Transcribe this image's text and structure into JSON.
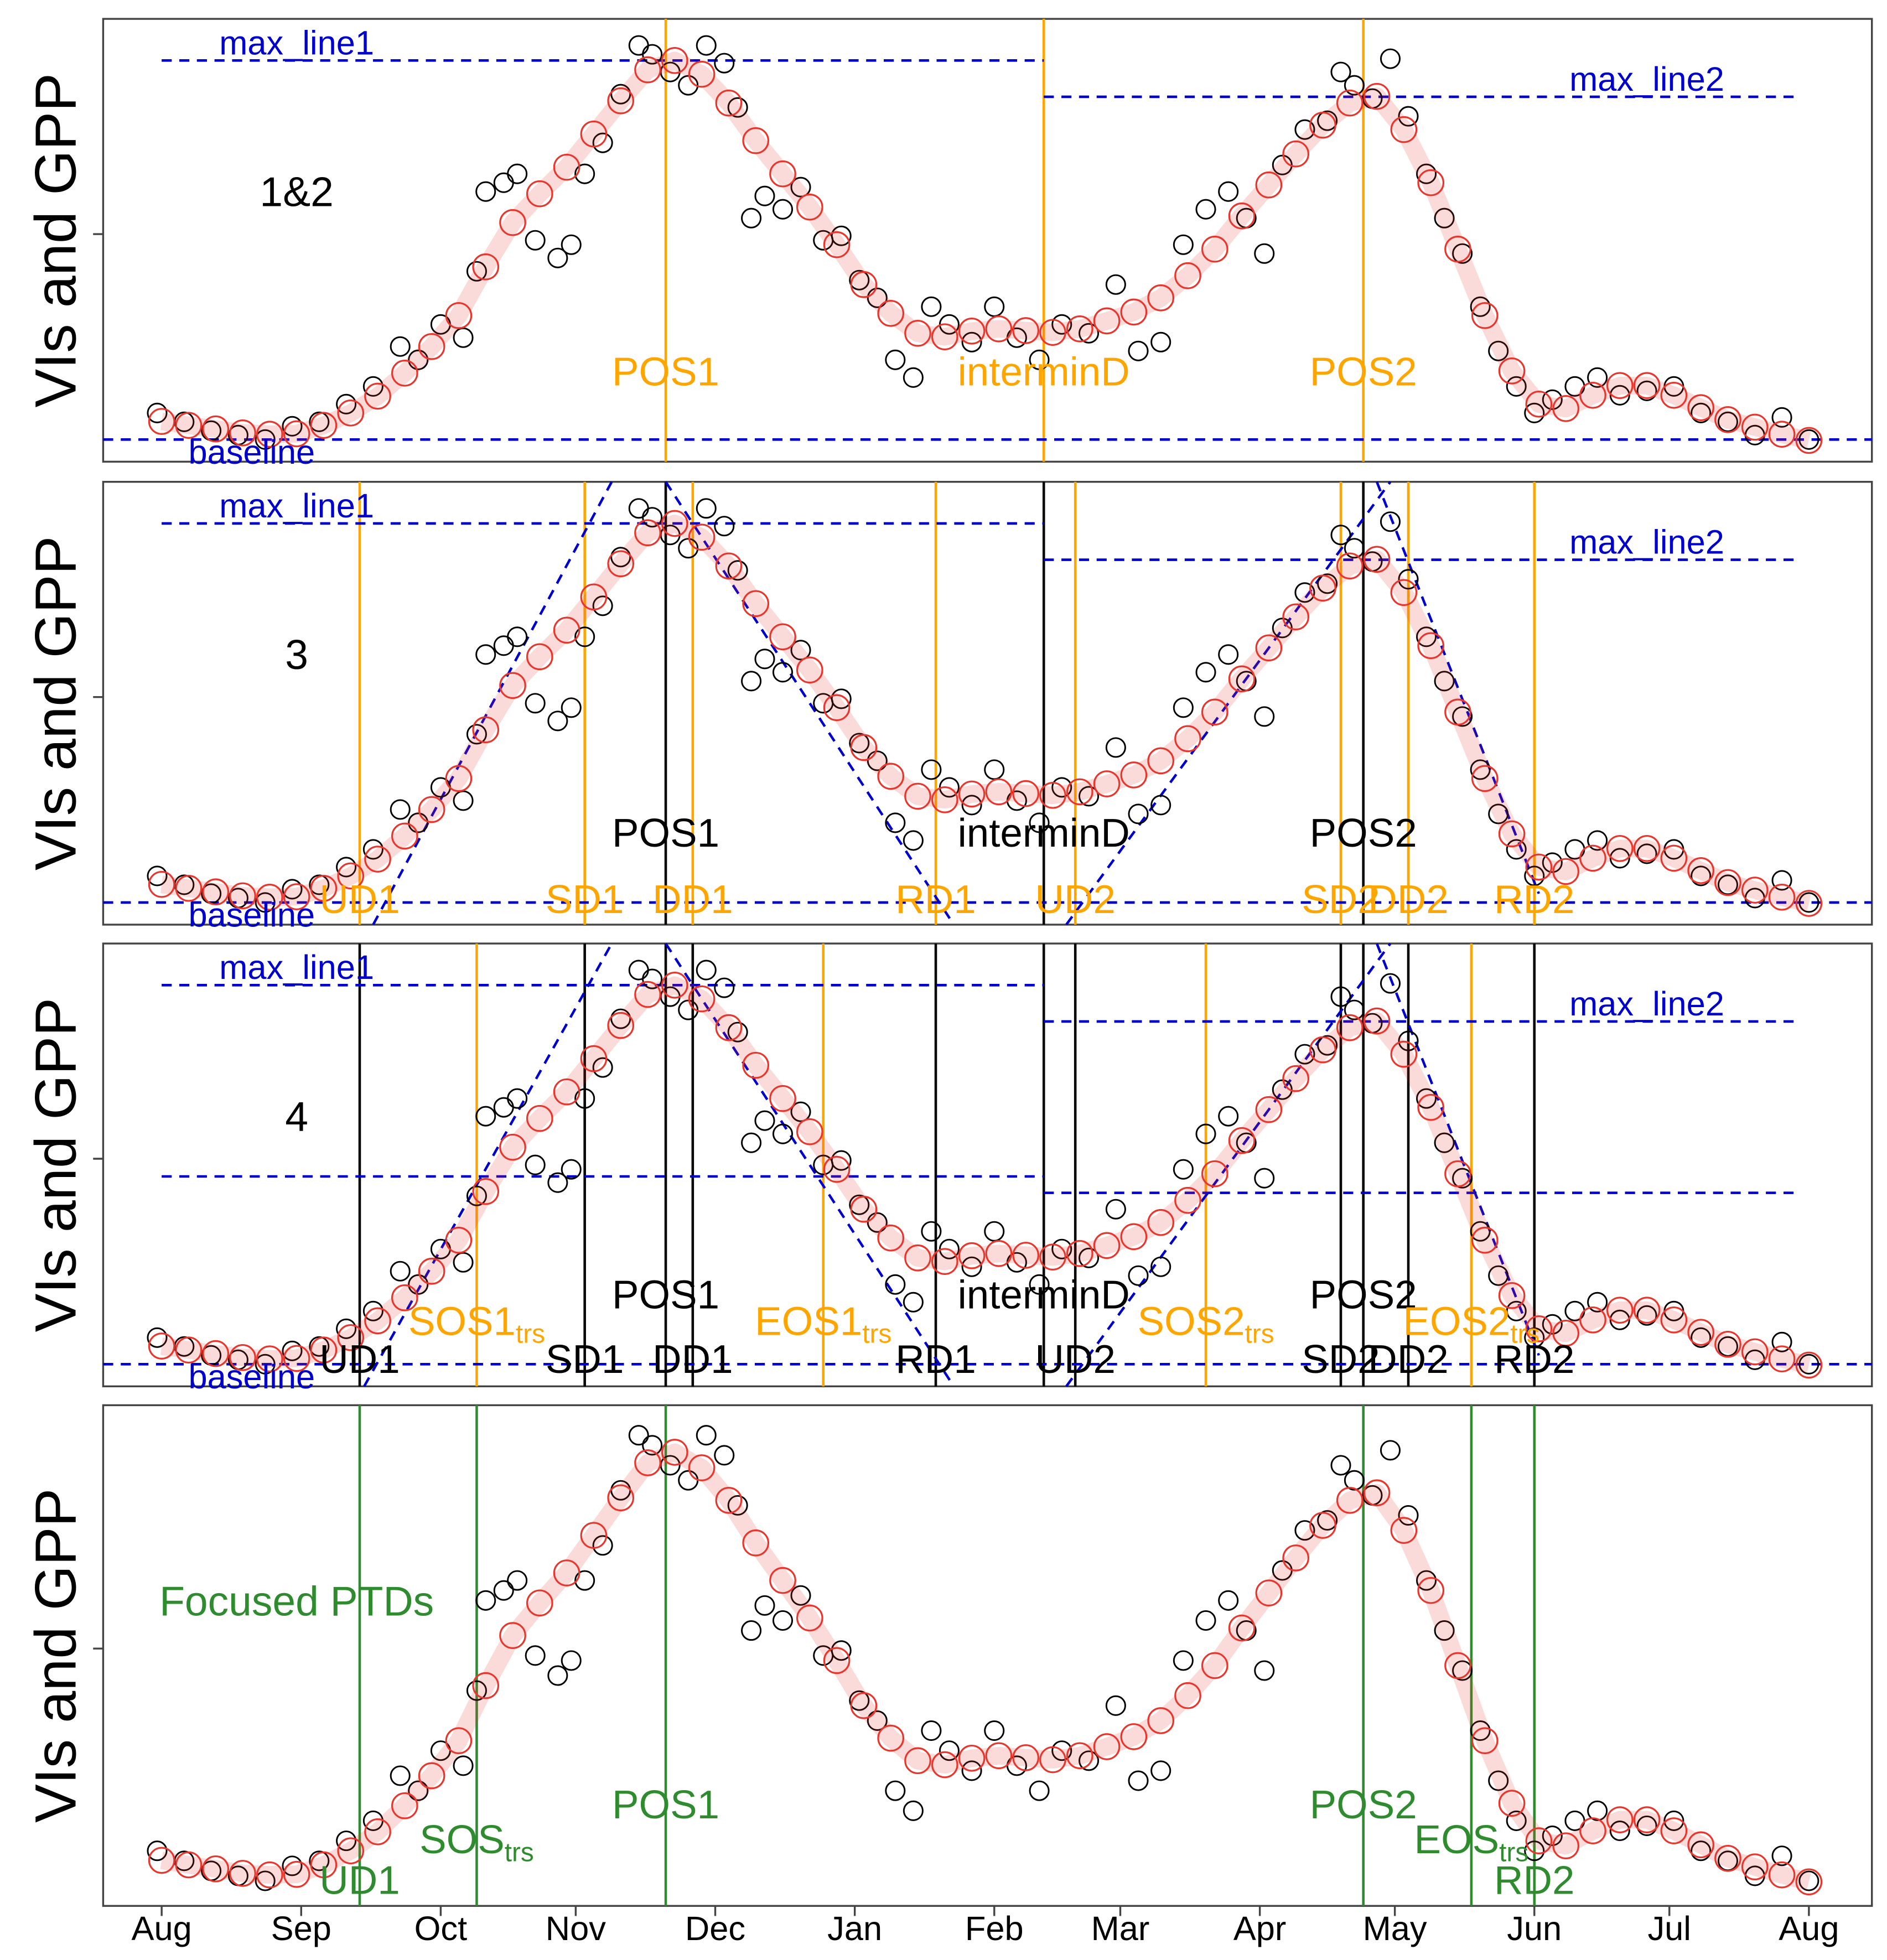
{
  "chart_data": {
    "type": "scatter",
    "ylabel": "VIs and GPP",
    "xlim": [
      -13,
      380
    ],
    "ylim": [
      0.05,
      1.05
    ],
    "yticks": [
      0.564
    ],
    "xticks": [
      {
        "value": 0,
        "label": "Aug"
      },
      {
        "value": 31,
        "label": "Sep"
      },
      {
        "value": 62,
        "label": "Oct"
      },
      {
        "value": 92,
        "label": "Nov"
      },
      {
        "value": 123,
        "label": "Dec"
      },
      {
        "value": 154,
        "label": "Jan"
      },
      {
        "value": 185,
        "label": "Feb"
      },
      {
        "value": 213,
        "label": "Mar"
      },
      {
        "value": 244,
        "label": "Apr"
      },
      {
        "value": 274,
        "label": "May"
      },
      {
        "value": 305,
        "label": "Jun"
      },
      {
        "value": 335,
        "label": "Jul"
      },
      {
        "value": 366,
        "label": "Aug"
      }
    ],
    "series": [
      {
        "color": "#000000",
        "x": [
          -1,
          5,
          11,
          17,
          23,
          29,
          35,
          41,
          47,
          53,
          57,
          62,
          67,
          70,
          72,
          76,
          79,
          83,
          88,
          91,
          94,
          98,
          102,
          106,
          109,
          113,
          117,
          121,
          125,
          128,
          131,
          134,
          138,
          142,
          147,
          151,
          155,
          159,
          163,
          167,
          171,
          175,
          180,
          185,
          190,
          195,
          200,
          206,
          212,
          217,
          222,
          227,
          232,
          237,
          241,
          245,
          249,
          254,
          259,
          262,
          265,
          269,
          273,
          277,
          281,
          285,
          289,
          293,
          297,
          301,
          305,
          309,
          314,
          319,
          324,
          330,
          336,
          342,
          348,
          354,
          360,
          366
        ],
        "values": [
          0.16,
          0.14,
          0.12,
          0.11,
          0.1,
          0.13,
          0.14,
          0.18,
          0.22,
          0.31,
          0.28,
          0.36,
          0.33,
          0.48,
          0.66,
          0.68,
          0.7,
          0.55,
          0.51,
          0.54,
          0.7,
          0.77,
          0.88,
          0.99,
          0.97,
          0.93,
          0.9,
          0.99,
          0.95,
          0.85,
          0.6,
          0.65,
          0.62,
          0.67,
          0.55,
          0.56,
          0.46,
          0.42,
          0.28,
          0.24,
          0.4,
          0.36,
          0.32,
          0.4,
          0.33,
          0.28,
          0.36,
          0.34,
          0.45,
          0.3,
          0.32,
          0.54,
          0.62,
          0.66,
          0.6,
          0.52,
          0.72,
          0.8,
          0.82,
          0.93,
          0.9,
          0.87,
          0.96,
          0.83,
          0.7,
          0.6,
          0.52,
          0.4,
          0.3,
          0.22,
          0.16,
          0.19,
          0.22,
          0.24,
          0.2,
          0.21,
          0.22,
          0.16,
          0.14,
          0.11,
          0.15,
          0.1
        ]
      },
      {
        "color": "#e8362c",
        "x": [
          0,
          6,
          12,
          18,
          24,
          30,
          36,
          42,
          48,
          54,
          60,
          66,
          72,
          78,
          84,
          90,
          96,
          102,
          108,
          114,
          120,
          126,
          132,
          138,
          144,
          150,
          156,
          162,
          168,
          174,
          180,
          186,
          192,
          198,
          204,
          210,
          216,
          222,
          228,
          234,
          240,
          246,
          252,
          258,
          264,
          270,
          276,
          282,
          288,
          294,
          300,
          306,
          312,
          318,
          324,
          330,
          336,
          342,
          348,
          354,
          360,
          366
        ],
        "values": [
          0.141,
          0.132,
          0.124,
          0.115,
          0.112,
          0.113,
          0.132,
          0.16,
          0.198,
          0.25,
          0.31,
          0.38,
          0.49,
          0.59,
          0.655,
          0.715,
          0.79,
          0.865,
          0.935,
          0.956,
          0.925,
          0.86,
          0.775,
          0.7,
          0.625,
          0.54,
          0.45,
          0.385,
          0.34,
          0.332,
          0.345,
          0.35,
          0.346,
          0.342,
          0.35,
          0.368,
          0.388,
          0.42,
          0.47,
          0.53,
          0.605,
          0.675,
          0.745,
          0.81,
          0.86,
          0.875,
          0.8,
          0.68,
          0.53,
          0.38,
          0.255,
          0.18,
          0.17,
          0.2,
          0.222,
          0.222,
          0.2,
          0.172,
          0.145,
          0.128,
          0.112,
          0.098
        ]
      }
    ],
    "line_color": "#0000cd",
    "panels": [
      {
        "label": "1&2",
        "label_color": "#000000",
        "hlines": [
          {
            "label": "max_line1",
            "value": 0.956,
            "x": [
              0,
              196
            ]
          },
          {
            "label": "max_line2",
            "value": 0.874,
            "x": [
              196,
              364
            ]
          },
          {
            "label": "baseline",
            "value": 0.1
          }
        ],
        "vlines": [
          {
            "color": "#ffa500",
            "lines": [
              {
                "label": "POS1",
                "x": 112
              },
              {
                "label": "interminD",
                "x": 196
              },
              {
                "label": "POS2",
                "x": 267
              }
            ]
          }
        ]
      },
      {
        "label": "3",
        "label_color": "#000000",
        "hlines": [
          {
            "label": "max_line1",
            "value": 0.956,
            "x": [
              0,
              196
            ]
          },
          {
            "label": "max_line2",
            "value": 0.874,
            "x": [
              196,
              364
            ]
          },
          {
            "label": "baseline",
            "value": 0.1
          }
        ],
        "dashed": [
          {
            "x": [
              47,
              100
            ],
            "values": [
              0.05,
              1.05
            ]
          },
          {
            "x": [
              112,
              176
            ],
            "values": [
              1.05,
              0.05
            ]
          },
          {
            "x": [
              201,
              273
            ],
            "values": [
              0.05,
              1.05
            ]
          },
          {
            "x": [
              270,
              306
            ],
            "values": [
              1.05,
              0.12
            ]
          }
        ],
        "vlines": [
          {
            "color": "#ffa500",
            "lines": [
              {
                "label": "UD1",
                "x": 44
              },
              {
                "label": "SD1",
                "x": 94
              },
              {
                "label": "DD1",
                "x": 118
              },
              {
                "label": "RD1",
                "x": 172
              },
              {
                "label": "UD2",
                "x": 203
              },
              {
                "label": "SD2",
                "x": 262
              },
              {
                "label": "DD2",
                "x": 277
              },
              {
                "label": "RD2",
                "x": 305
              }
            ]
          },
          {
            "color": "#000000",
            "lines": [
              {
                "label": "POS1",
                "x": 112
              },
              {
                "label": "interminD",
                "x": 196
              },
              {
                "label": "POS2",
                "x": 267
              }
            ]
          }
        ]
      },
      {
        "label": "4",
        "label_color": "#000000",
        "hlines": [
          {
            "label": "max_line1",
            "value": 0.956,
            "x": [
              0,
              196
            ]
          },
          {
            "label": "max_line2",
            "value": 0.874,
            "x": [
              196,
              364
            ]
          },
          {
            "label": "baseline",
            "value": 0.1
          },
          {
            "value": 0.524,
            "x": [
              0,
              196
            ]
          },
          {
            "value": 0.487,
            "x": [
              196,
              364
            ]
          }
        ],
        "dashed": [
          {
            "x": [
              45,
              100
            ],
            "values": [
              0.05,
              1.05
            ]
          },
          {
            "x": [
              112,
              176
            ],
            "values": [
              1.05,
              0.05
            ]
          },
          {
            "x": [
              201,
              273
            ],
            "values": [
              0.05,
              1.05
            ]
          },
          {
            "x": [
              270,
              306
            ],
            "values": [
              1.05,
              0.12
            ]
          }
        ],
        "vlines": [
          {
            "color": "#000000",
            "lines": [
              {
                "label": "UD1",
                "x": 44
              },
              {
                "label": "SD1",
                "x": 94
              },
              {
                "label": "DD1",
                "x": 118
              },
              {
                "label": "RD1",
                "x": 172
              },
              {
                "label": "UD2",
                "x": 203
              },
              {
                "label": "SD2",
                "x": 262
              },
              {
                "label": "DD2",
                "x": 277
              },
              {
                "label": "RD2",
                "x": 305
              }
            ]
          },
          {
            "color": "#000000",
            "lines": [
              {
                "label": "POS1",
                "x": 112
              },
              {
                "label": "interminD",
                "x": 196
              },
              {
                "label": "POS2",
                "x": 267
              }
            ]
          },
          {
            "color": "#ffa500",
            "lines": [
              {
                "label": "SOS1",
                "sub": "trs",
                "x": 70
              },
              {
                "label": "EOS1",
                "sub": "trs",
                "x": 147
              },
              {
                "label": "SOS2",
                "sub": "trs",
                "x": 232
              },
              {
                "label": "EOS2",
                "sub": "trs",
                "x": 291
              }
            ]
          }
        ]
      },
      {
        "label": "Focused PTDs",
        "label_color": "#2e8b2e",
        "hlines": [],
        "vlines": [
          {
            "color": "#2e8b2e",
            "lines": [
              {
                "label": "UD1",
                "x": 44
              },
              {
                "label": "SOS",
                "sub": "trs",
                "x": 70
              },
              {
                "label": "POS1",
                "x": 112
              },
              {
                "label": "POS2",
                "x": 267
              },
              {
                "label": "EOS",
                "sub": "trs",
                "x": 291
              },
              {
                "label": "RD2",
                "x": 305
              }
            ]
          }
        ]
      }
    ]
  }
}
